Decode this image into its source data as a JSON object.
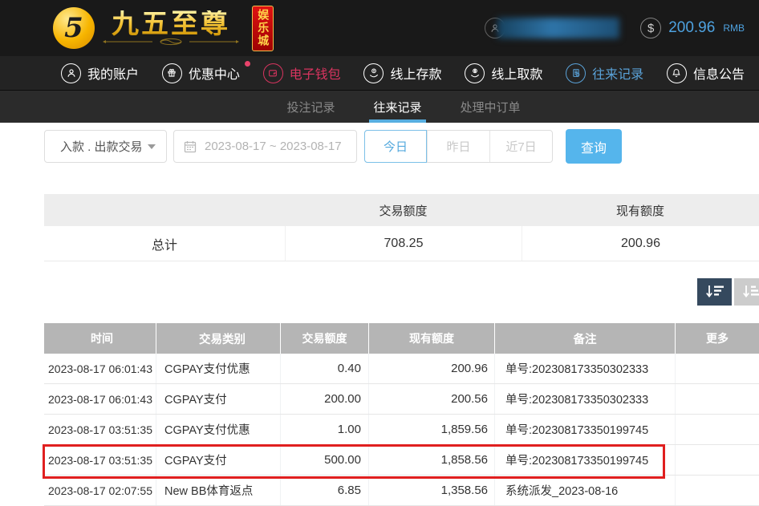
{
  "header": {
    "brand_title": "九五至尊",
    "brand_sub": "娱乐城",
    "brand_monogram": "5",
    "balance_amount": "200.96",
    "balance_currency": "RMB",
    "dollar_symbol": "$"
  },
  "nav": {
    "items": [
      {
        "label": "我的账户",
        "icon": "user-icon"
      },
      {
        "label": "优惠中心",
        "icon": "gift-icon",
        "badge": true
      },
      {
        "label": "电子钱包",
        "icon": "wallet-icon",
        "color": "#d8345f"
      },
      {
        "label": "线上存款",
        "icon": "deposit-icon"
      },
      {
        "label": "线上取款",
        "icon": "withdraw-icon"
      },
      {
        "label": "往来记录",
        "icon": "records-icon",
        "color": "#5aa2d8",
        "active": true
      },
      {
        "label": "信息公告",
        "icon": "bell-icon"
      }
    ]
  },
  "subnav": {
    "tabs": [
      {
        "label": "投注记录",
        "active": false
      },
      {
        "label": "往来记录",
        "active": true
      },
      {
        "label": "处理中订单",
        "active": false
      }
    ]
  },
  "filters": {
    "type_select_value": "入款 . 出款交易",
    "date_range": "2023-08-17 ~ 2023-08-17",
    "quick_ranges": [
      "今日",
      "昨日",
      "近7日"
    ],
    "active_range": "今日",
    "search_label": "查询"
  },
  "summary": {
    "col_trade": "交易额度",
    "col_balance": "现有额度",
    "row_label": "总计",
    "trade_total": "708.25",
    "balance_total": "200.96"
  },
  "table": {
    "headers": [
      "时间",
      "交易类别",
      "交易额度",
      "现有额度",
      "备注",
      "更多"
    ],
    "rows": [
      {
        "time": "2023-08-17 06:01:43",
        "type": "CGPAY支付优惠",
        "amount": "0.40",
        "balance": "200.96",
        "remark": "单号:202308173350302333",
        "more": "",
        "highlighted": false
      },
      {
        "time": "2023-08-17 06:01:43",
        "type": "CGPAY支付",
        "amount": "200.00",
        "balance": "200.56",
        "remark": "单号:202308173350302333",
        "more": "",
        "highlighted": false
      },
      {
        "time": "2023-08-17 03:51:35",
        "type": "CGPAY支付优惠",
        "amount": "1.00",
        "balance": "1,859.56",
        "remark": "单号:202308173350199745",
        "more": "",
        "highlighted": false
      },
      {
        "time": "2023-08-17 03:51:35",
        "type": "CGPAY支付",
        "amount": "500.00",
        "balance": "1,858.56",
        "remark": "单号:202308173350199745",
        "more": "",
        "highlighted": true
      },
      {
        "time": "2023-08-17 02:07:55",
        "type": "New BB体育返点",
        "amount": "6.85",
        "balance": "1,358.56",
        "remark": "系统派发_2023-08-16",
        "more": "",
        "highlighted": false
      }
    ],
    "highlight_color": "#e01f1f"
  },
  "colors": {
    "accent_blue": "#55b5ec",
    "nav_active_blue": "#5aa2d8",
    "nav_crimson": "#d8345f",
    "sort_dark": "#35495e",
    "highlight_red": "#e01f1f"
  }
}
